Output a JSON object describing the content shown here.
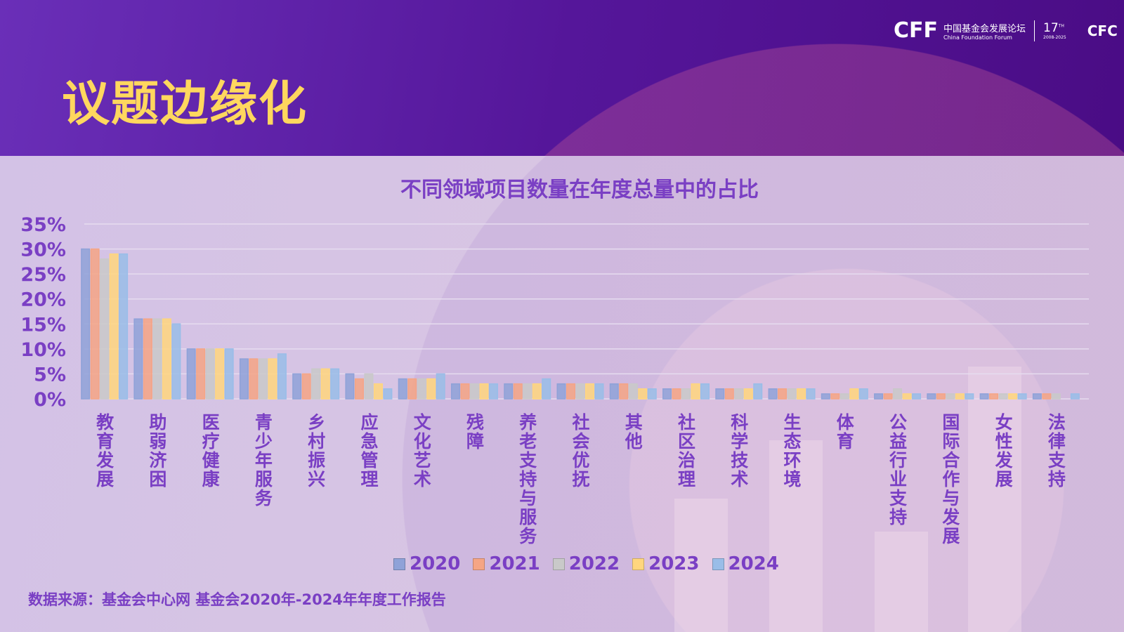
{
  "header": {
    "title": "议题边缘化",
    "logo": {
      "mark": "CFF",
      "name_cn": "中国基金会发展论坛",
      "name_en": "China Foundation Forum",
      "edition": "17",
      "edition_suffix": "TH",
      "years": "2008-2025",
      "partner": "CFC"
    }
  },
  "chart_data": {
    "type": "bar",
    "title": "不同领域项目数量在年度总量中的占比",
    "ylim": [
      0,
      35
    ],
    "yticks": [
      "0%",
      "5%",
      "10%",
      "15%",
      "20%",
      "25%",
      "30%",
      "35%"
    ],
    "grid": true,
    "legend_position": "bottom",
    "categories": [
      "教育发展",
      "助弱济困",
      "医疗健康",
      "青少年服务",
      "乡村振兴",
      "应急管理",
      "文化艺术",
      "残障",
      "养老支持与服务",
      "社会优抚",
      "其他",
      "社区治理",
      "科学技术",
      "生态环境",
      "体育",
      "公益行业支持",
      "国际合作与发展",
      "女性发展",
      "法律支持"
    ],
    "series": [
      {
        "name": "2020",
        "color": "#8fa2d8",
        "values": [
          30,
          16,
          10,
          8,
          5,
          5,
          4,
          3,
          3,
          3,
          3,
          2,
          2,
          2,
          1,
          1,
          1,
          1,
          1
        ]
      },
      {
        "name": "2021",
        "color": "#f5a585",
        "values": [
          30,
          16,
          10,
          8,
          5,
          4,
          4,
          3,
          3,
          3,
          3,
          2,
          2,
          2,
          1,
          1,
          1,
          1,
          1
        ]
      },
      {
        "name": "2022",
        "color": "#c9c9c9",
        "values": [
          28,
          16,
          10,
          8,
          6,
          5,
          4,
          3,
          3,
          3,
          3,
          2,
          2,
          2,
          1,
          2,
          1,
          1,
          1
        ]
      },
      {
        "name": "2023",
        "color": "#ffd67e",
        "values": [
          29,
          16,
          10,
          8,
          6,
          3,
          4,
          3,
          3,
          3,
          2,
          3,
          2,
          2,
          2,
          1,
          1,
          1,
          0
        ]
      },
      {
        "name": "2024",
        "color": "#99bde8",
        "values": [
          29,
          15,
          10,
          9,
          6,
          2,
          5,
          3,
          4,
          3,
          2,
          3,
          3,
          2,
          2,
          1,
          1,
          1,
          1
        ]
      }
    ]
  },
  "source": "数据来源：基金会中心网 基金会2020年-2024年年度工作报告"
}
